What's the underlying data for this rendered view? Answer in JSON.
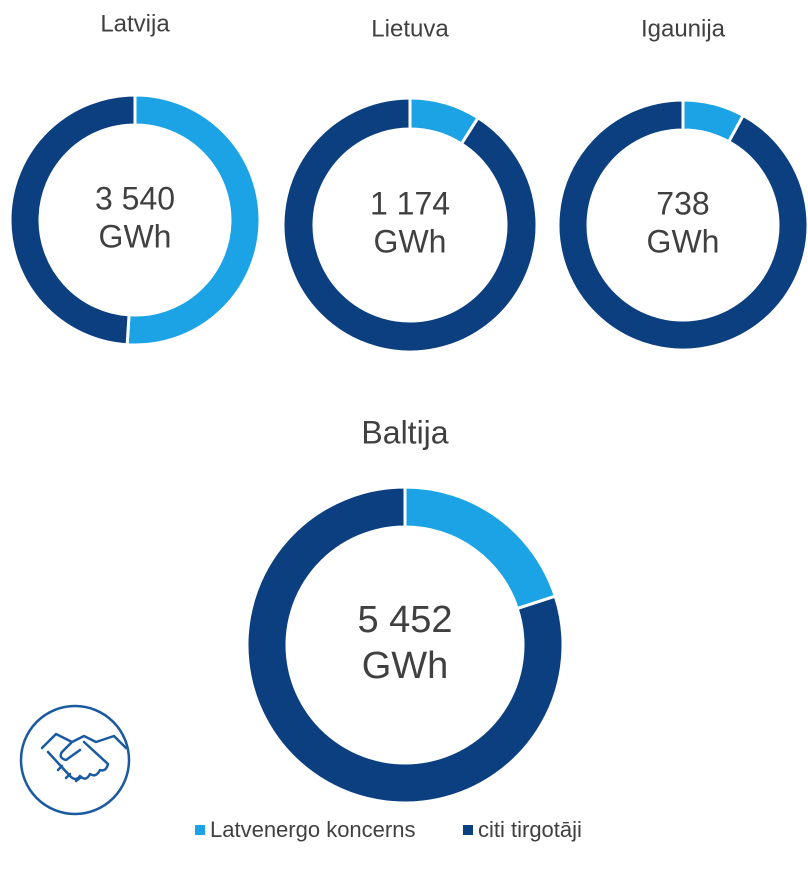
{
  "chart_data": [
    {
      "type": "donut",
      "title": "Latvija",
      "center_value": "3 540",
      "center_unit": "GWh",
      "categories": [
        "Latvenergo koncerns",
        "citi tirgotāji"
      ],
      "values": [
        51,
        49
      ],
      "colors": [
        "#1ba3e6",
        "#0b3f80"
      ]
    },
    {
      "type": "donut",
      "title": "Lietuva",
      "center_value": "1 174",
      "center_unit": "GWh",
      "categories": [
        "Latvenergo koncerns",
        "citi tirgotāji"
      ],
      "values": [
        9,
        91
      ],
      "colors": [
        "#1ba3e6",
        "#0b3f80"
      ]
    },
    {
      "type": "donut",
      "title": "Igaunija",
      "center_value": "738",
      "center_unit": "GWh",
      "categories": [
        "Latvenergo koncerns",
        "citi tirgotāji"
      ],
      "values": [
        8,
        92
      ],
      "colors": [
        "#1ba3e6",
        "#0b3f80"
      ]
    },
    {
      "type": "donut",
      "title": "Baltija",
      "center_value": "5 452",
      "center_unit": "GWh",
      "categories": [
        "Latvenergo koncerns",
        "citi tirgotāji"
      ],
      "values": [
        20,
        80
      ],
      "colors": [
        "#1ba3e6",
        "#0b3f80"
      ]
    }
  ]
}
